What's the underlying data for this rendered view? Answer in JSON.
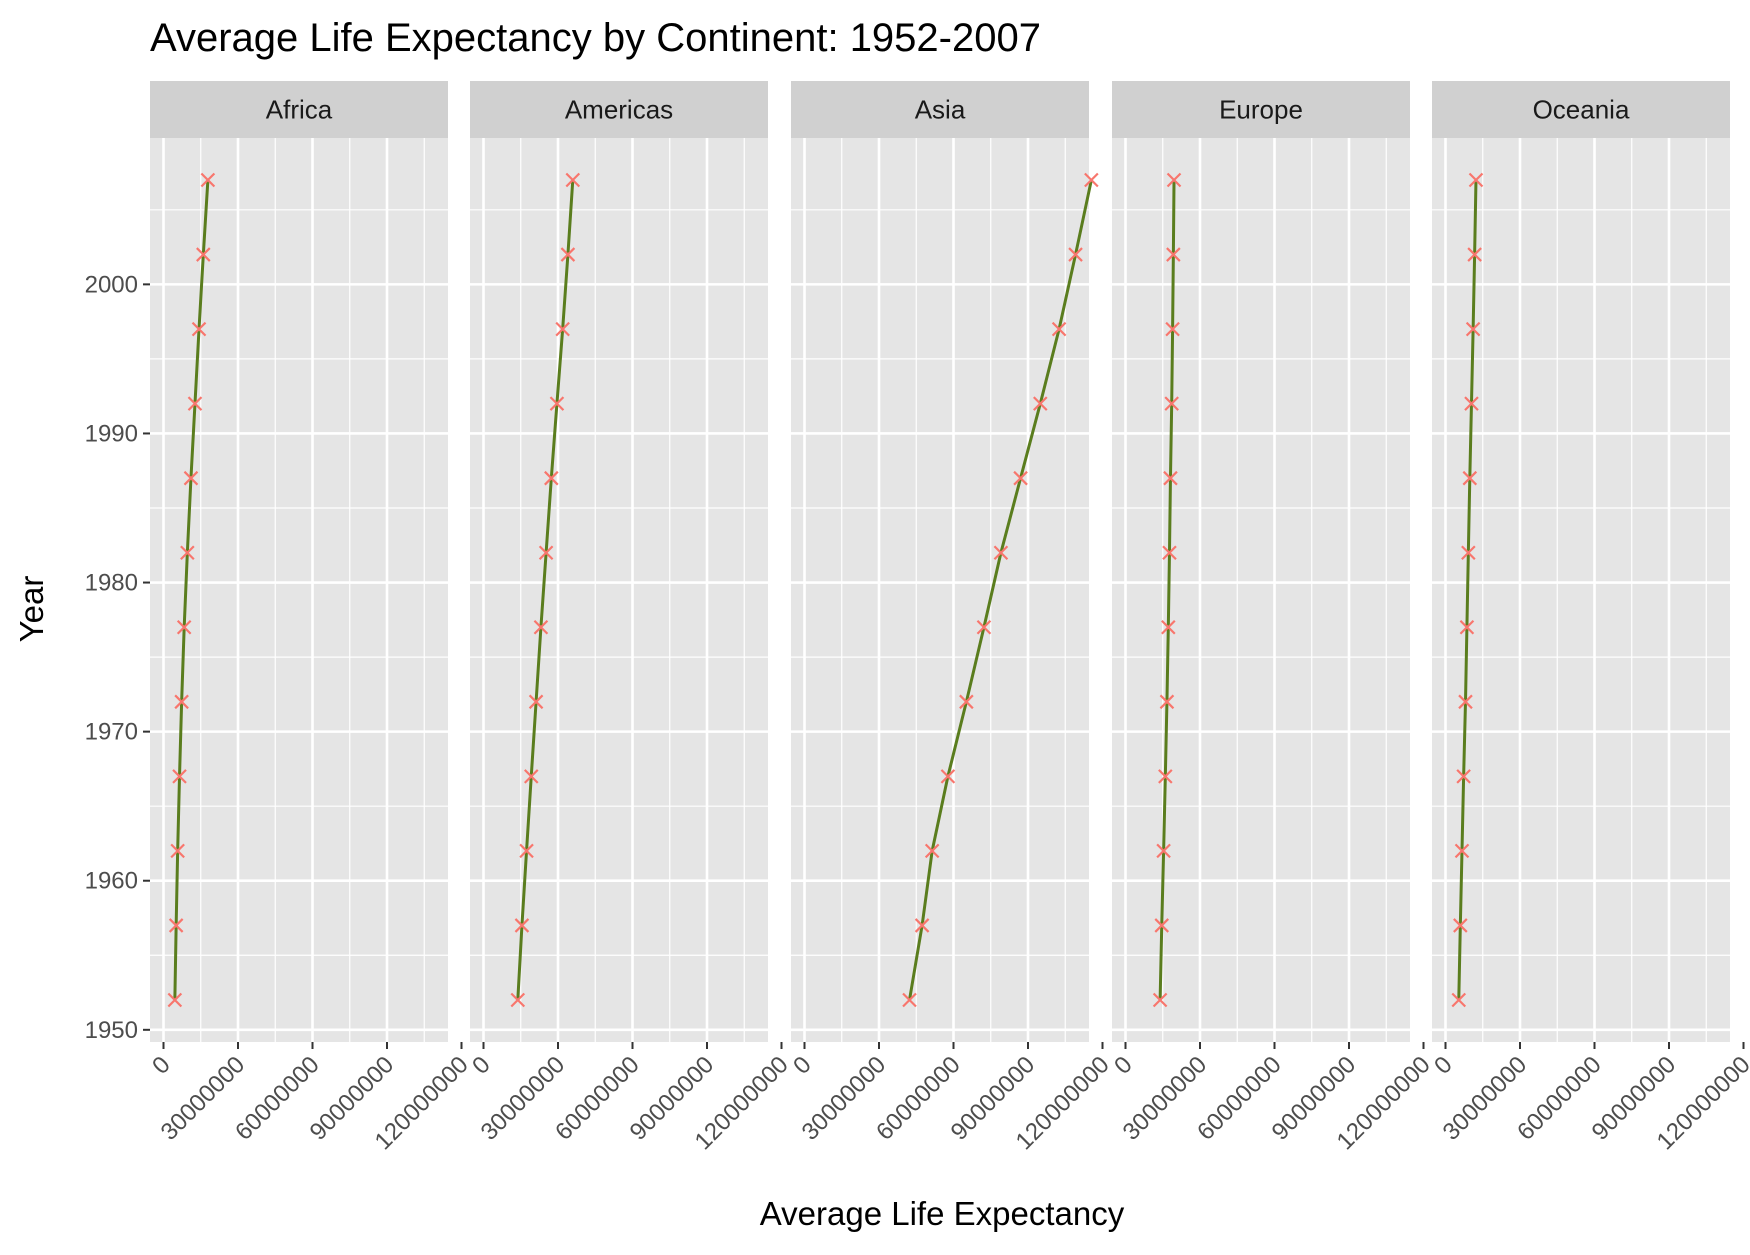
{
  "chart_data": {
    "type": "line",
    "title": "Average Life Expectancy by Continent: 1952-2007",
    "xlabel": "Average Life Expectancy",
    "ylabel": "Year",
    "xlim": [
      0,
      120000000
    ],
    "ylim": [
      1950,
      2007
    ],
    "x_ticks": [
      0,
      30000000,
      60000000,
      90000000,
      120000000
    ],
    "x_tick_labels": [
      "0",
      "30000000",
      "60000000",
      "90000000",
      "120000000"
    ],
    "y_ticks": [
      1950,
      1960,
      1970,
      1980,
      1990,
      2000
    ],
    "y_tick_labels": [
      "1950",
      "1960",
      "1970",
      "1980",
      "1990",
      "2000"
    ],
    "grid": true,
    "legend": "none",
    "colors": {
      "line": "#5a7d1e",
      "marker": "#f8766d",
      "panel_bg": "#e5e5e5",
      "strip_bg": "#d0d0d0",
      "grid": "#ffffff"
    },
    "years": [
      1952,
      1957,
      1962,
      1967,
      1972,
      1977,
      1982,
      1987,
      1992,
      1997,
      2002,
      2007
    ],
    "facets": [
      {
        "name": "Africa",
        "values": [
          4570010,
          5093033,
          5702247,
          6447875,
          7305376,
          8328097,
          9602857,
          11054502,
          12674645,
          14304480,
          16033152,
          17875763
        ]
      },
      {
        "name": "Americas",
        "values": [
          13806098,
          15478157,
          17330810,
          19229865,
          21175368,
          23122708,
          25211637,
          27310159,
          29570964,
          31876016,
          33990910,
          35954847
        ]
      },
      {
        "name": "Asia",
        "values": [
          42283556,
          47356988,
          51404763,
          57747361,
          65180977,
          72257987,
          79095018,
          87006690,
          94948248,
          102523803,
          109145521,
          115513752
        ]
      },
      {
        "name": "Europe",
        "values": [
          13937362,
          14596345,
          15345172,
          16039299,
          16687835,
          17238818,
          17708897,
          18103139,
          18604760,
          18964805,
          19274129,
          19536618
        ]
      },
      {
        "name": "Oceania",
        "values": [
          5343003,
          5970988,
          6641759,
          7300207,
          8053050,
          8619500,
          9197425,
          9787208,
          10459826,
          11120715,
          11727415,
          12274974
        ]
      }
    ]
  }
}
